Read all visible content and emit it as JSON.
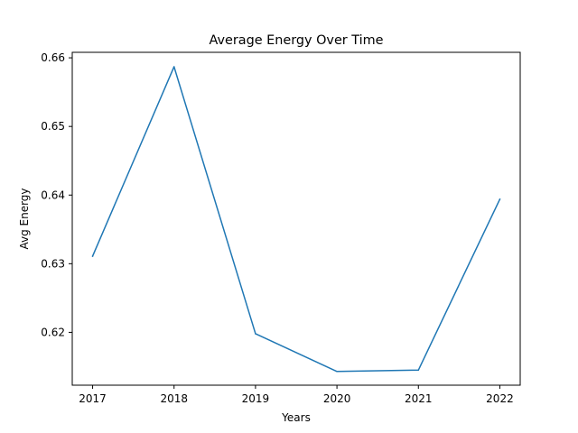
{
  "chart_data": {
    "type": "line",
    "title": "Average Energy Over Time",
    "xlabel": "Years",
    "ylabel": "Avg Energy",
    "x": [
      2017,
      2018,
      2019,
      2020,
      2021,
      2022
    ],
    "x_tick_labels": [
      "2017",
      "2018",
      "2019",
      "2020",
      "2021",
      "2022"
    ],
    "xlim": [
      2016.75,
      2022.25
    ],
    "ylim": [
      0.6123,
      0.6608
    ],
    "y_ticks": [
      0.62,
      0.63,
      0.64,
      0.65,
      0.66
    ],
    "y_tick_labels": [
      "0.62",
      "0.63",
      "0.64",
      "0.65",
      "0.66"
    ],
    "series": [
      {
        "values": [
          0.6311,
          0.6587,
          0.6198,
          0.6143,
          0.6145,
          0.6394
        ],
        "color": "#1f77b4"
      }
    ],
    "grid": false,
    "legend": "none"
  }
}
